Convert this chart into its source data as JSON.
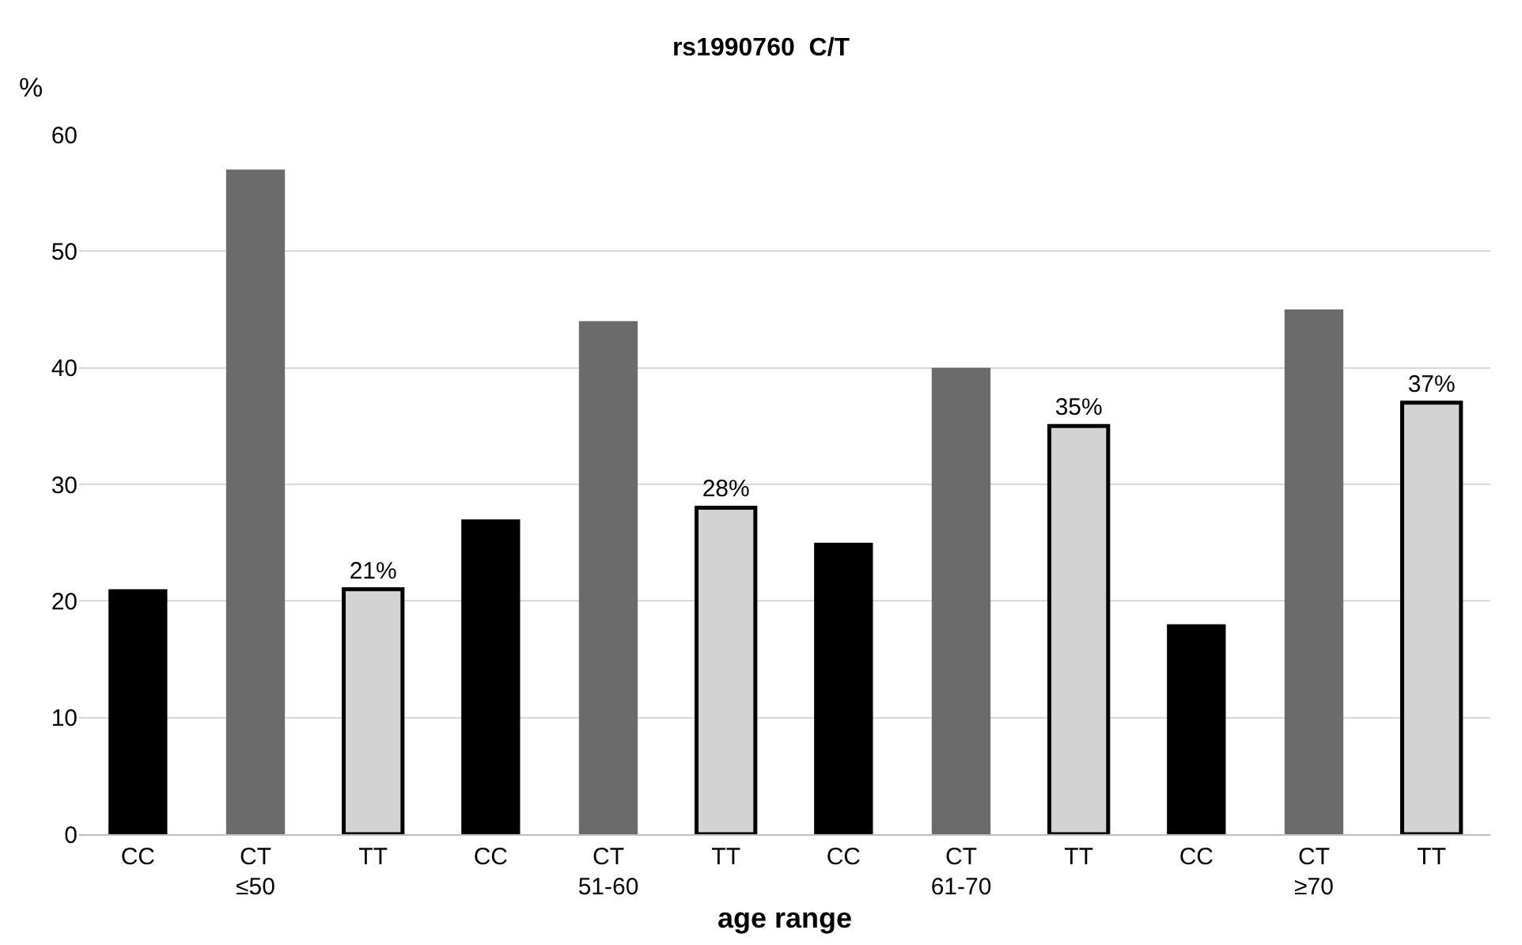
{
  "chart_data": {
    "type": "bar",
    "title": "rs1990760  C/T",
    "xlabel": "age range",
    "ylabel": "%",
    "categories": [
      "≤50",
      "51-60",
      "61-70",
      "≥70"
    ],
    "series": [
      {
        "name": "CC",
        "color": "#000000",
        "values": [
          21,
          27,
          25,
          18
        ]
      },
      {
        "name": "CT",
        "color": "#6b6b6b",
        "values": [
          57,
          44,
          40,
          45
        ]
      },
      {
        "name": "TT",
        "color": "#d3d3d3",
        "values": [
          21,
          28,
          35,
          37
        ],
        "value_labels": [
          "21%",
          "28%",
          "35%",
          "37%"
        ]
      }
    ],
    "ylim": [
      0,
      60
    ],
    "yticks": [
      0,
      10,
      20,
      30,
      40,
      50,
      60
    ],
    "grid": "y",
    "legend": false
  }
}
